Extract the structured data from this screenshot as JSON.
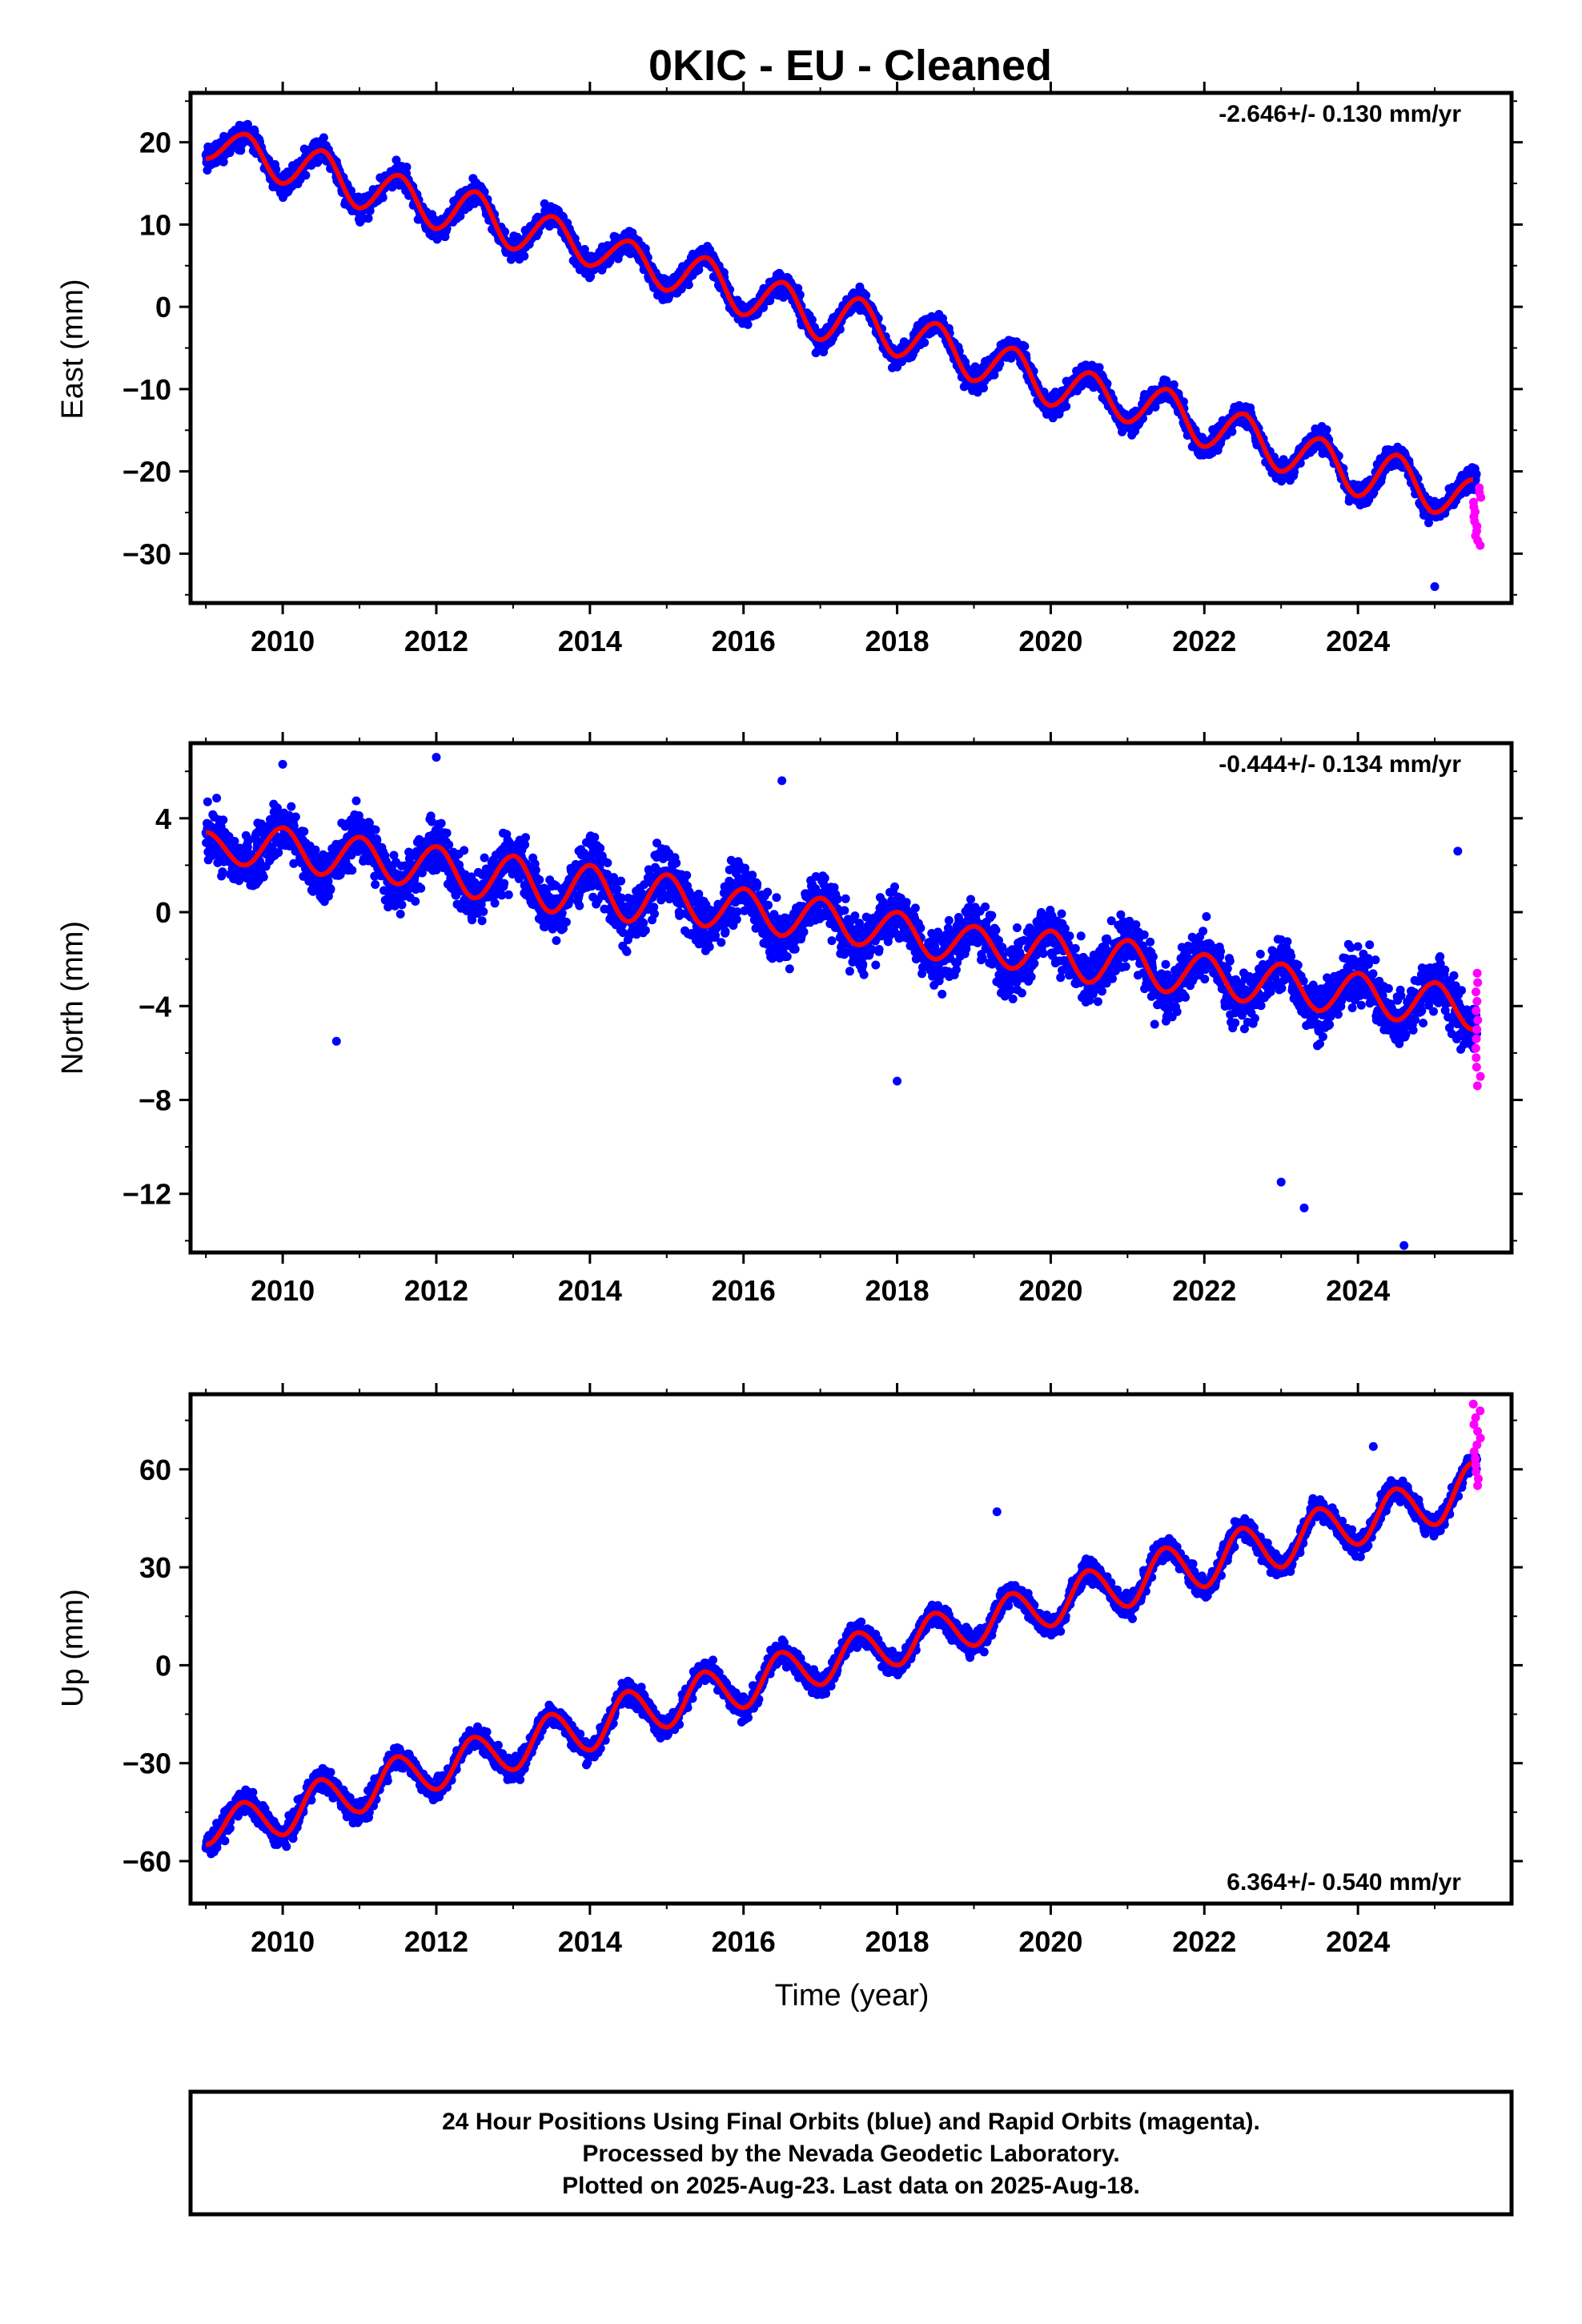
{
  "chart_data": {
    "type": "scatter",
    "title": "0KIC  - EU - Cleaned",
    "xlabel": "Time (year)",
    "x_range": [
      2008.8,
      2026.0
    ],
    "x_ticks": [
      "2010",
      "2012",
      "2014",
      "2016",
      "2018",
      "2020",
      "2022",
      "2024"
    ],
    "colors": {
      "final": "#0000ff",
      "rapid": "#ff00ff",
      "model": "#ff0000"
    },
    "panels": [
      {
        "name": "east",
        "ylabel": "East (mm)",
        "ylim": [
          -36,
          26
        ],
        "y_ticks": [
          20,
          10,
          0,
          -10,
          -20,
          -30
        ],
        "rate_label": "-2.646+/- 0.130 mm/yr",
        "rate_position": "top-right",
        "model": {
          "x": [
            2009.0,
            2009.5,
            2010.0,
            2010.5,
            2011.0,
            2011.5,
            2012.0,
            2012.5,
            2013.0,
            2013.5,
            2014.0,
            2014.5,
            2015.0,
            2015.5,
            2016.0,
            2016.5,
            2017.0,
            2017.5,
            2018.0,
            2018.5,
            2019.0,
            2019.5,
            2020.0,
            2020.5,
            2021.0,
            2021.5,
            2022.0,
            2022.5,
            2023.0,
            2023.5,
            2024.0,
            2024.5,
            2025.0,
            2025.5
          ],
          "y": [
            18,
            21,
            15,
            19,
            12,
            16,
            9.5,
            14,
            7,
            11,
            5,
            8,
            2,
            6,
            -1,
            3,
            -4,
            1,
            -6,
            -2,
            -9,
            -5,
            -12,
            -8,
            -14,
            -10,
            -17,
            -13,
            -20,
            -16,
            -23,
            -18,
            -25,
            -21
          ]
        },
        "rapid": {
          "x": [
            2025.5,
            2025.6
          ],
          "y_range": [
            -29,
            -22
          ]
        },
        "outliers": [
          {
            "x": 2025.0,
            "y": -34
          }
        ]
      },
      {
        "name": "north",
        "ylabel": "North (mm)",
        "ylim": [
          -14.5,
          7.2
        ],
        "y_ticks": [
          4,
          0,
          -4,
          -8,
          -12
        ],
        "rate_label": "-0.444+/- 0.134 mm/yr",
        "rate_position": "top-right",
        "model": {
          "x": [
            2009.0,
            2009.5,
            2010.0,
            2010.5,
            2011.0,
            2011.5,
            2012.0,
            2012.5,
            2013.0,
            2013.5,
            2014.0,
            2014.5,
            2015.0,
            2015.5,
            2016.0,
            2016.5,
            2017.0,
            2017.5,
            2018.0,
            2018.5,
            2019.0,
            2019.5,
            2020.0,
            2020.5,
            2021.0,
            2021.5,
            2022.0,
            2022.5,
            2023.0,
            2023.5,
            2024.0,
            2024.5,
            2025.0,
            2025.5
          ],
          "y": [
            3.4,
            2.0,
            3.6,
            1.6,
            3.2,
            1.2,
            2.8,
            0.6,
            2.4,
            0.0,
            2.0,
            -0.4,
            1.6,
            -0.6,
            1.0,
            -1.0,
            0.6,
            -1.4,
            0.0,
            -2.0,
            -0.6,
            -2.4,
            -0.8,
            -3.0,
            -1.2,
            -3.4,
            -1.8,
            -3.8,
            -2.2,
            -4.2,
            -2.6,
            -4.6,
            -3.0,
            -5.0
          ]
        },
        "rapid": {
          "x": [
            2025.5,
            2025.6
          ],
          "y_range": [
            -7.4,
            -2.6
          ]
        },
        "outliers": [
          {
            "x": 2012.0,
            "y": 6.6
          },
          {
            "x": 2010.0,
            "y": 6.3
          },
          {
            "x": 2010.7,
            "y": -5.5
          },
          {
            "x": 2018.0,
            "y": -7.2
          },
          {
            "x": 2023.0,
            "y": -11.5
          },
          {
            "x": 2023.3,
            "y": -12.6
          },
          {
            "x": 2024.6,
            "y": -14.2
          },
          {
            "x": 2025.3,
            "y": 2.6
          },
          {
            "x": 2016.5,
            "y": 5.6
          }
        ]
      },
      {
        "name": "up",
        "ylabel": "Up (mm)",
        "ylim": [
          -73,
          83
        ],
        "y_ticks": [
          60,
          30,
          0,
          -30,
          -60
        ],
        "rate_label": "6.364+/- 0.540 mm/yr",
        "rate_position": "bottom-right",
        "model": {
          "x": [
            2009.0,
            2009.5,
            2010.0,
            2010.5,
            2011.0,
            2011.5,
            2012.0,
            2012.5,
            2013.0,
            2013.5,
            2014.0,
            2014.5,
            2015.0,
            2015.5,
            2016.0,
            2016.5,
            2017.0,
            2017.5,
            2018.0,
            2018.5,
            2019.0,
            2019.5,
            2020.0,
            2020.5,
            2021.0,
            2021.5,
            2022.0,
            2022.5,
            2023.0,
            2023.5,
            2024.0,
            2024.5,
            2025.0,
            2025.5
          ],
          "y": [
            -55,
            -42,
            -52,
            -35,
            -45,
            -28,
            -38,
            -22,
            -32,
            -15,
            -26,
            -8,
            -19,
            -2,
            -13,
            4,
            -6,
            10,
            0,
            16,
            6,
            22,
            12,
            29,
            18,
            36,
            24,
            42,
            30,
            48,
            37,
            54,
            43,
            62
          ]
        },
        "rapid": {
          "x": [
            2025.5,
            2025.6
          ],
          "y_range": [
            55,
            80
          ]
        },
        "outliers": [
          {
            "x": 2019.3,
            "y": 47
          },
          {
            "x": 2024.2,
            "y": 67
          }
        ]
      }
    ]
  },
  "footer": {
    "line1": "24 Hour Positions Using Final Orbits (blue) and Rapid Orbits (magenta).",
    "line2": "Processed by the Nevada Geodetic Laboratory.",
    "line3": "Plotted on 2025-Aug-23. Last data on 2025-Aug-18."
  }
}
